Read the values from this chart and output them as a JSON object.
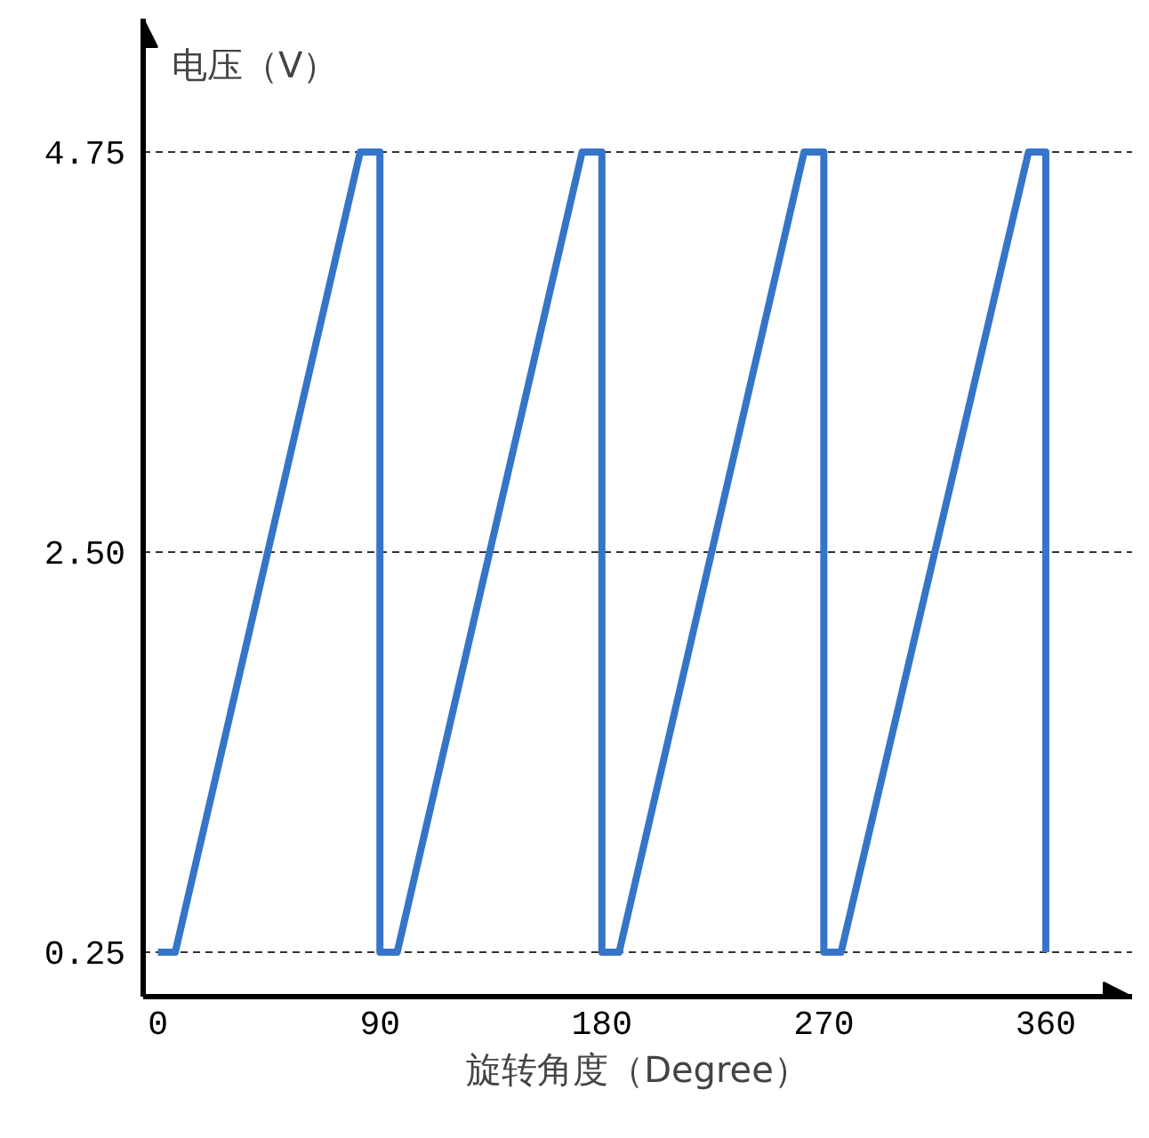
{
  "chart_data": {
    "type": "line",
    "xlabel": "旋转角度（Degree）",
    "ylabel": "电压（V）",
    "x": [
      0,
      7,
      82,
      90,
      90,
      97,
      172,
      180,
      180,
      187,
      262,
      270,
      270,
      277,
      353,
      360,
      360
    ],
    "series": [
      {
        "color": "#3575c8",
        "values": [
          0.25,
          0.25,
          4.75,
          4.75,
          0.25,
          0.25,
          4.75,
          4.75,
          0.25,
          0.25,
          4.75,
          4.75,
          0.25,
          0.25,
          4.75,
          4.75,
          0.25
        ]
      }
    ],
    "xlim": [
      -6,
      395
    ],
    "ylim": [
      0,
      5.5
    ],
    "xticks": [
      0,
      90,
      180,
      270,
      360
    ],
    "yticks": [
      {
        "value": 0.25,
        "label": "0.25"
      },
      {
        "value": 2.5,
        "label": "2.50"
      },
      {
        "value": 4.75,
        "label": "4.75"
      }
    ],
    "grid": "y",
    "marker": "none",
    "line_style": "solid"
  }
}
